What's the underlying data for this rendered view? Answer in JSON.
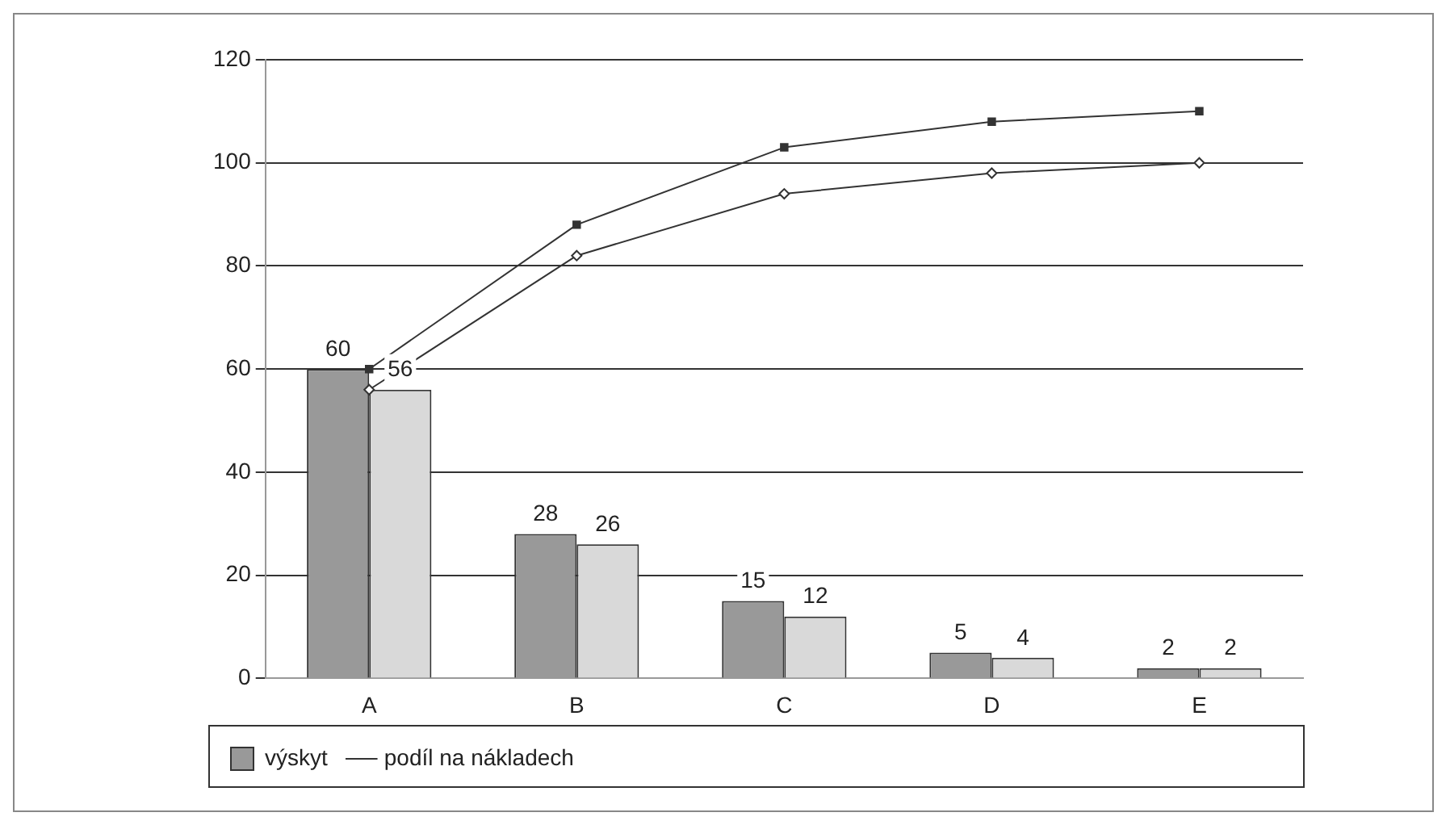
{
  "chart_data": {
    "type": "bar",
    "categories": [
      "A",
      "B",
      "C",
      "D",
      "E"
    ],
    "series": [
      {
        "name": "výskyt",
        "color": "#999999",
        "values": [
          60,
          28,
          15,
          5,
          2
        ],
        "value_labels": [
          "60",
          "28",
          "15",
          "5",
          "2"
        ]
      },
      {
        "color": "#d9d9d9",
        "values": [
          56,
          26,
          12,
          4,
          2
        ],
        "value_labels": [
          "56",
          "26",
          "12",
          "4",
          "2"
        ]
      },
      {
        "type": "line",
        "color": "#333333",
        "marker": "square",
        "values": [
          60,
          88,
          103,
          108,
          110
        ]
      },
      {
        "type": "line",
        "name": "podíl na nákladech",
        "color": "#333333",
        "marker": "diamond",
        "values": [
          56,
          82,
          94,
          98,
          100
        ]
      }
    ],
    "ylim": [
      0,
      120
    ],
    "yticks": [
      0,
      20,
      40,
      60,
      80,
      100,
      120
    ],
    "grid": "y",
    "legend": "bottom"
  }
}
